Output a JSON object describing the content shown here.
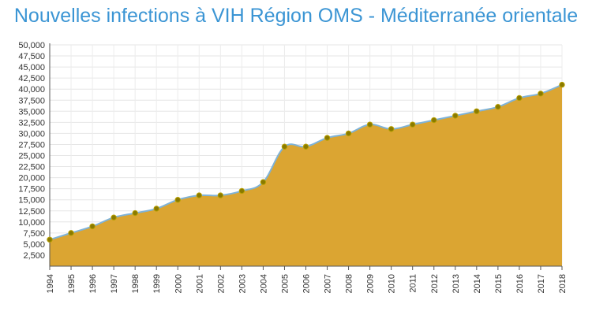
{
  "chart_data": {
    "type": "area",
    "title": "Nouvelles infections à VIH Région OMS - Méditerranée orientale",
    "xlabel": "",
    "ylabel": "",
    "x": [
      "1994",
      "1995",
      "1996",
      "1997",
      "1998",
      "1999",
      "2000",
      "2001",
      "2002",
      "2003",
      "2004",
      "2005",
      "2006",
      "2007",
      "2008",
      "2009",
      "2010",
      "2011",
      "2012",
      "2013",
      "2014",
      "2015",
      "2016",
      "2017",
      "2018"
    ],
    "series": [
      {
        "values": [
          6000,
          7500,
          9000,
          11000,
          12000,
          13000,
          15000,
          16000,
          16000,
          17000,
          19000,
          27000,
          27000,
          29000,
          30000,
          32000,
          31000,
          32000,
          33000,
          34000,
          35000,
          36000,
          38000,
          39000,
          41000
        ]
      }
    ],
    "y_ticks": [
      "2,500",
      "5,000",
      "7,500",
      "10,000",
      "12,500",
      "15,000",
      "17,500",
      "20,000",
      "22,500",
      "25,000",
      "27,500",
      "30,000",
      "32,500",
      "35,000",
      "37,500",
      "40,000",
      "42,500",
      "45,000",
      "47,500",
      "50,000"
    ],
    "ylim": [
      0,
      50000
    ],
    "grid": true,
    "legend": "none",
    "colors": {
      "fill": "#dba532",
      "line": "#7fb3d8",
      "marker": "#8a7a00",
      "title": "#3b95d4"
    }
  }
}
